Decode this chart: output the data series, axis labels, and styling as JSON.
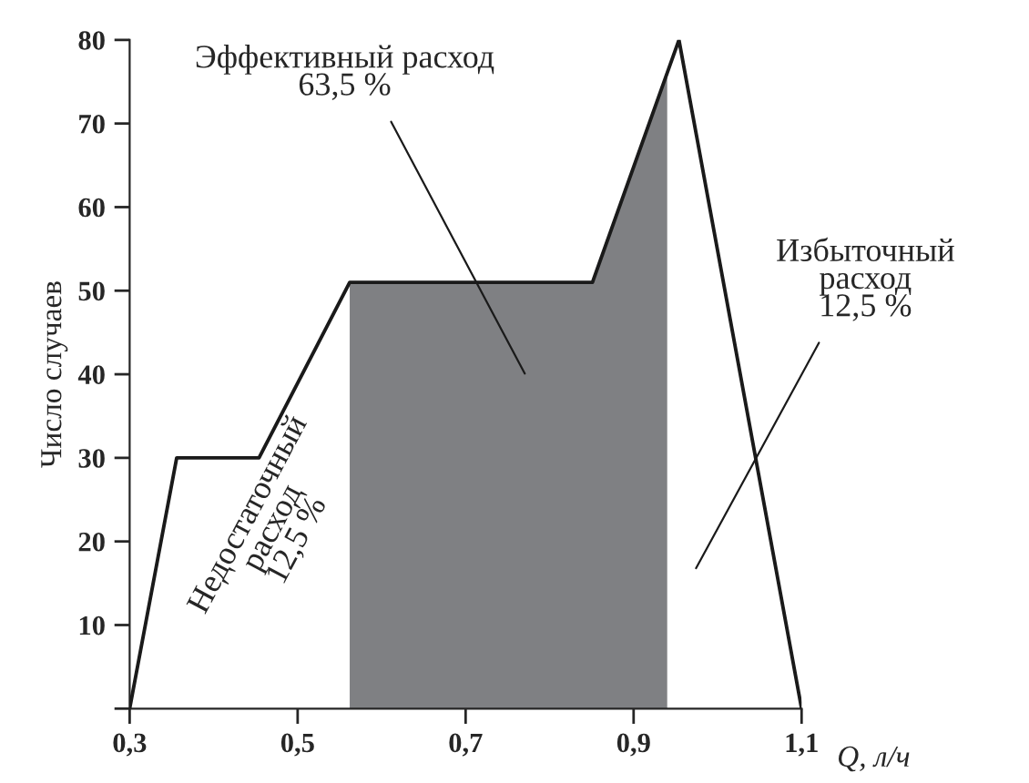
{
  "chart_data": {
    "type": "line",
    "ylabel": "Число случаев",
    "xlabel": "Q, л/ч",
    "series": [
      {
        "color": "#1a1a1a",
        "x": [
          0.3,
          0.356,
          0.454,
          0.562,
          0.851,
          0.954,
          1.1
        ],
        "values": [
          0,
          30,
          30,
          51,
          51,
          80,
          0
        ]
      },
      {
        "type": "area",
        "color": "#7f8083",
        "x": [
          0.562,
          0.851,
          0.94
        ],
        "values": [
          51,
          51,
          76
        ]
      }
    ],
    "xlim": [
      0.3,
      1.1
    ],
    "ylim": [
      0,
      80
    ],
    "xticks": [
      {
        "value": 0.3,
        "label": "0,3"
      },
      {
        "value": 0.5,
        "label": "0,5"
      },
      {
        "value": 0.7,
        "label": "0,7"
      },
      {
        "value": 0.9,
        "label": "0,9"
      },
      {
        "value": 1.1,
        "label": "1,1"
      }
    ],
    "yticks": [
      {
        "value": 0,
        "label": null
      },
      10,
      20,
      30,
      40,
      50,
      60,
      70,
      80
    ],
    "grid": false,
    "legend": false,
    "marker": "none",
    "line_style": "solid",
    "annotations": [
      "Эффективный расход\n63,5 %",
      "Избыточный\nрасход\n12,5 %",
      "Недостаточный\nрасход\n12,5 %"
    ]
  }
}
